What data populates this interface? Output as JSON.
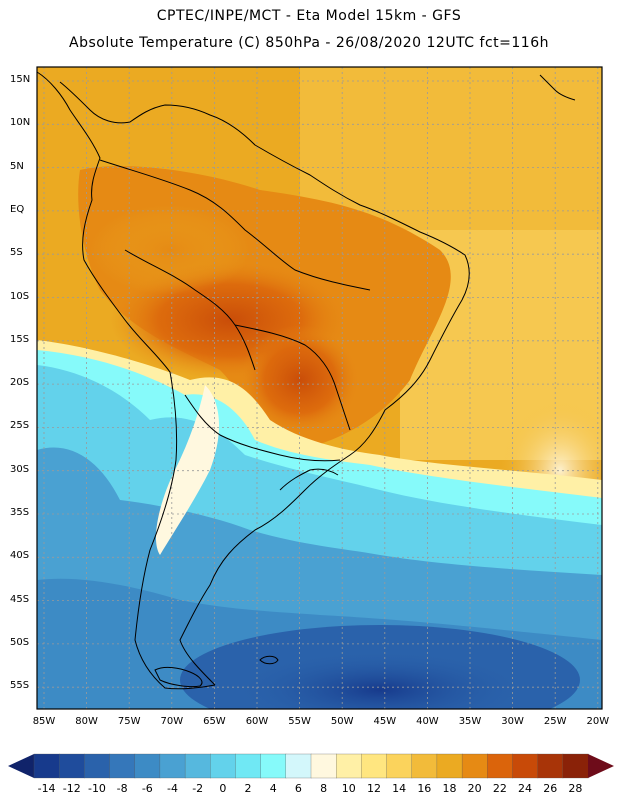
{
  "header": {
    "line1": "CPTEC/INPE/MCT -  Eta Model 15km - GFS",
    "line2": "Absolute Temperature (C) 850hPa - 26/08/2020 12UTC fct=116h"
  },
  "map": {
    "variable": "Absolute Temperature (C)",
    "level": "850hPa",
    "lat_labels": [
      "15N",
      "10N",
      "5N",
      "EQ",
      "5S",
      "10S",
      "15S",
      "20S",
      "25S",
      "30S",
      "35S",
      "40S",
      "45S",
      "50S",
      "55S"
    ],
    "lon_labels": [
      "85W",
      "80W",
      "75W",
      "70W",
      "65W",
      "60W",
      "55W",
      "50W",
      "45W",
      "40W",
      "35W",
      "30W",
      "25W",
      "20W"
    ],
    "colors": {
      "land_line": "#000000",
      "grid": "#9a9a9a"
    }
  },
  "colorbar": {
    "labels": [
      "-14",
      "-12",
      "-10",
      "-8",
      "-6",
      "-4",
      "-2",
      "0",
      "2",
      "4",
      "6",
      "8",
      "10",
      "12",
      "14",
      "16",
      "18",
      "20",
      "22",
      "24",
      "26",
      "28"
    ],
    "colors": [
      "#173a8c",
      "#1f4c9c",
      "#2a62ab",
      "#3577ba",
      "#3d8bc5",
      "#4aa1d2",
      "#56b8de",
      "#63d2eb",
      "#70e8f4",
      "#86fafa",
      "#d3f7fb",
      "#fff8df",
      "#fff0a6",
      "#ffe680",
      "#fbd35c",
      "#f2bb3a",
      "#ebaa22",
      "#e68a14",
      "#db640b",
      "#c84a08",
      "#a83408",
      "#8a2208"
    ],
    "under_color": "#10236a",
    "over_color": "#6e0c1a"
  }
}
